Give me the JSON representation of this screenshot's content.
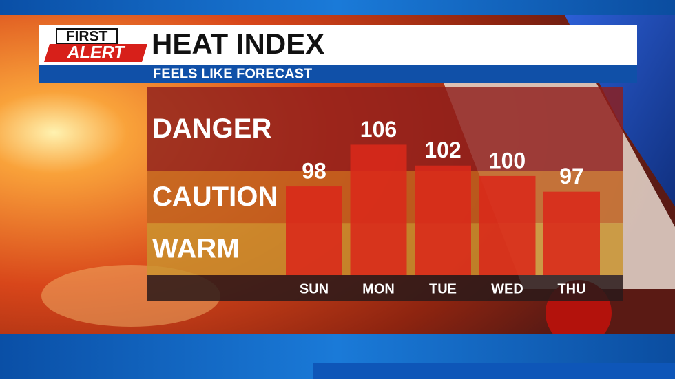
{
  "logo": {
    "line1": "FIRST",
    "line2": "ALERT"
  },
  "chart_data": {
    "type": "bar",
    "title": "HEAT INDEX",
    "subtitle": "FEELS LIKE FORECAST",
    "categories": [
      "SUN",
      "MON",
      "TUE",
      "WED",
      "THU"
    ],
    "values": [
      98,
      106,
      102,
      100,
      97
    ],
    "color": "#d9291a",
    "ylim": [
      81,
      117
    ],
    "zones": [
      {
        "label": "DANGER",
        "from": 101,
        "to": 117,
        "color": "#8f1f1c"
      },
      {
        "label": "CAUTION",
        "from": 91,
        "to": 101,
        "color": "#c0611f"
      },
      {
        "label": "WARM",
        "from": 81,
        "to": 91,
        "color": "#c9942e"
      }
    ]
  }
}
